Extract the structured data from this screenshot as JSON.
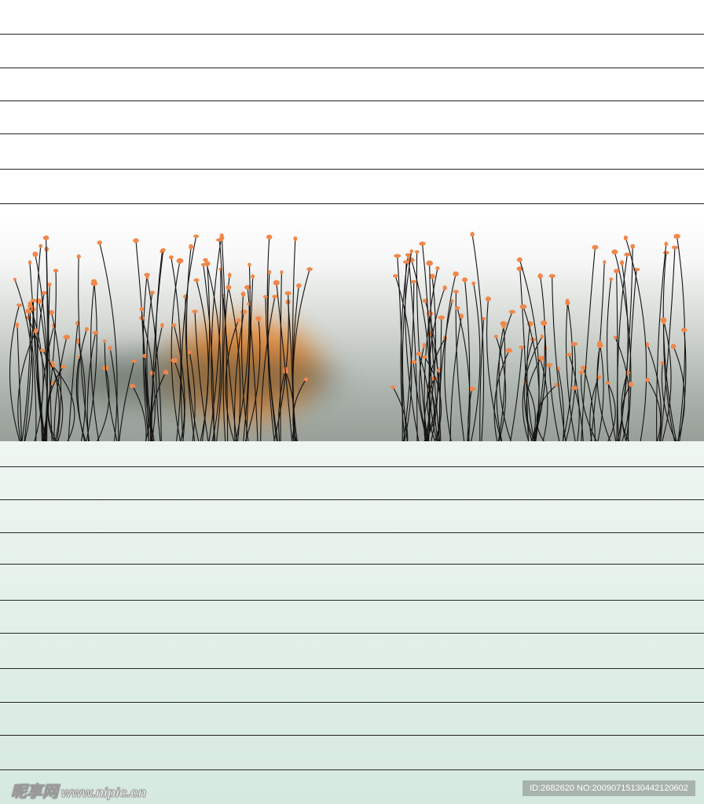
{
  "watermark": {
    "logo_text": "昵享网",
    "url": "www.nipic.cn",
    "id_text": "ID:2682620 NO:20090715130442120602"
  },
  "colors": {
    "stem": "#111111",
    "flower": "#f0874a",
    "blob": "#e8862f",
    "band_top": "#ffffff",
    "band_bottom": "#979f98",
    "lower_bg": "#d5e9df"
  }
}
